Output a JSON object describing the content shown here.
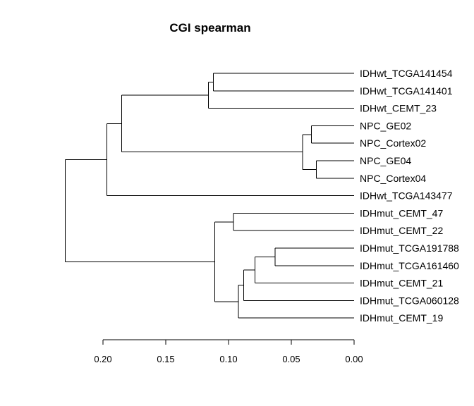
{
  "chart_data": {
    "type": "dendrogram",
    "title": "CGI spearman",
    "orientation": "horizontal",
    "axis": {
      "range": [
        0.2,
        0.0
      ],
      "ticks": [
        0.2,
        0.15,
        0.1,
        0.05,
        0.0
      ],
      "tick_labels": [
        "0.20",
        "0.15",
        "0.10",
        "0.05",
        "0.00"
      ]
    },
    "leaves": [
      "IDHwt_TCGA141454",
      "IDHwt_TCGA141401",
      "IDHwt_CEMT_23",
      "NPC_GE02",
      "NPC_Cortex02",
      "NPC_GE04",
      "NPC_Cortex04",
      "IDHwt_TCGA143477",
      "IDHmut_CEMT_47",
      "IDHmut_CEMT_22",
      "IDHmut_TCGA191788",
      "IDHmut_TCGA161460",
      "IDHmut_CEMT_21",
      "IDHmut_TCGA060128",
      "IDHmut_CEMT_19"
    ],
    "merges": [
      {
        "a": "L:IDHwt_TCGA141454",
        "b": "L:IDHwt_TCGA141401",
        "height": 0.112
      },
      {
        "a": "M:0",
        "b": "L:IDHwt_CEMT_23",
        "height": 0.116
      },
      {
        "a": "L:NPC_GE02",
        "b": "L:NPC_Cortex02",
        "height": 0.034
      },
      {
        "a": "L:NPC_GE04",
        "b": "L:NPC_Cortex04",
        "height": 0.03
      },
      {
        "a": "M:2",
        "b": "M:3",
        "height": 0.041
      },
      {
        "a": "M:1",
        "b": "M:4",
        "height": 0.185
      },
      {
        "a": "M:5",
        "b": "L:IDHwt_TCGA143477",
        "height": 0.197
      },
      {
        "a": "L:IDHmut_CEMT_47",
        "b": "L:IDHmut_CEMT_22",
        "height": 0.096
      },
      {
        "a": "L:IDHmut_TCGA191788",
        "b": "L:IDHmut_TCGA161460",
        "height": 0.063
      },
      {
        "a": "M:8",
        "b": "L:IDHmut_CEMT_21",
        "height": 0.079
      },
      {
        "a": "M:9",
        "b": "L:IDHmut_TCGA060128",
        "height": 0.088
      },
      {
        "a": "M:10",
        "b": "L:IDHmut_CEMT_19",
        "height": 0.092
      },
      {
        "a": "M:7",
        "b": "M:11",
        "height": 0.111
      },
      {
        "a": "M:6",
        "b": "M:12",
        "height": 0.23
      }
    ]
  }
}
